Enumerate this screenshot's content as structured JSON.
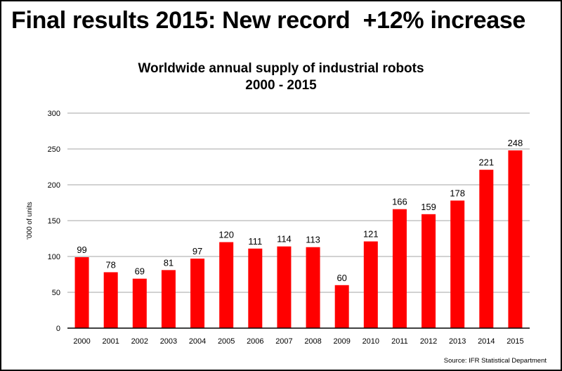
{
  "headline": "Final results 2015: New record  +12% increase",
  "chart_data": {
    "type": "bar",
    "title": "Worldwide annual supply of industrial robots",
    "subtitle": "2000 - 2015",
    "xlabel": "",
    "ylabel": "'000 of units",
    "ylim": [
      0,
      300
    ],
    "yticks": [
      0,
      50,
      100,
      150,
      200,
      250,
      300
    ],
    "grid": true,
    "categories": [
      "2000",
      "2001",
      "2002",
      "2003",
      "2004",
      "2005",
      "2006",
      "2007",
      "2008",
      "2009",
      "2010",
      "2011",
      "2012",
      "2013",
      "2014",
      "2015"
    ],
    "values": [
      99,
      78,
      69,
      81,
      97,
      120,
      111,
      114,
      113,
      60,
      121,
      166,
      159,
      178,
      221,
      248
    ],
    "bar_color": "#ff0000",
    "data_labels": true
  },
  "source": "Source: IFR Statistical Department"
}
